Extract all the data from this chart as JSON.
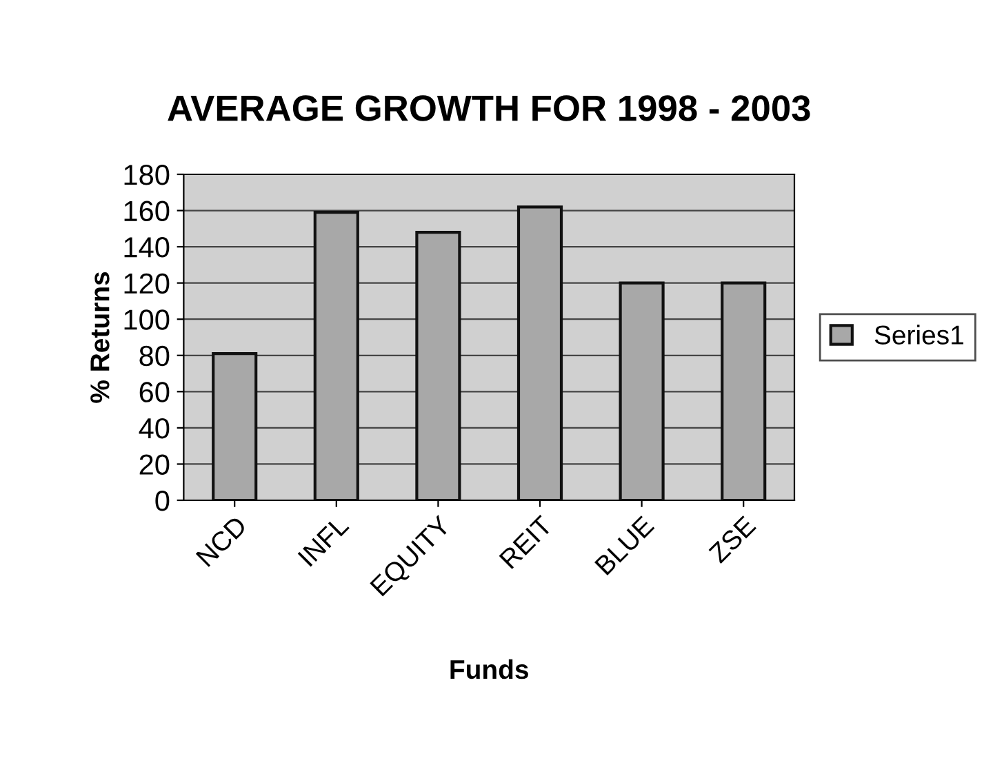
{
  "chart_data": {
    "type": "bar",
    "title": "AVERAGE GROWTH FOR 1998 - 2003",
    "xlabel": "Funds",
    "ylabel": "% Returns",
    "categories": [
      "NCD",
      "INFL",
      "EQUITY",
      "REIT",
      "BLUE",
      "ZSE"
    ],
    "series": [
      {
        "name": "Series1",
        "color": "#a8a8a8",
        "values": [
          81,
          159,
          148,
          162,
          120,
          120
        ]
      }
    ],
    "ylim": [
      0,
      180
    ],
    "yticks": [
      0,
      20,
      40,
      60,
      80,
      100,
      120,
      140,
      160,
      180
    ],
    "grid": "y",
    "legend": "right"
  }
}
